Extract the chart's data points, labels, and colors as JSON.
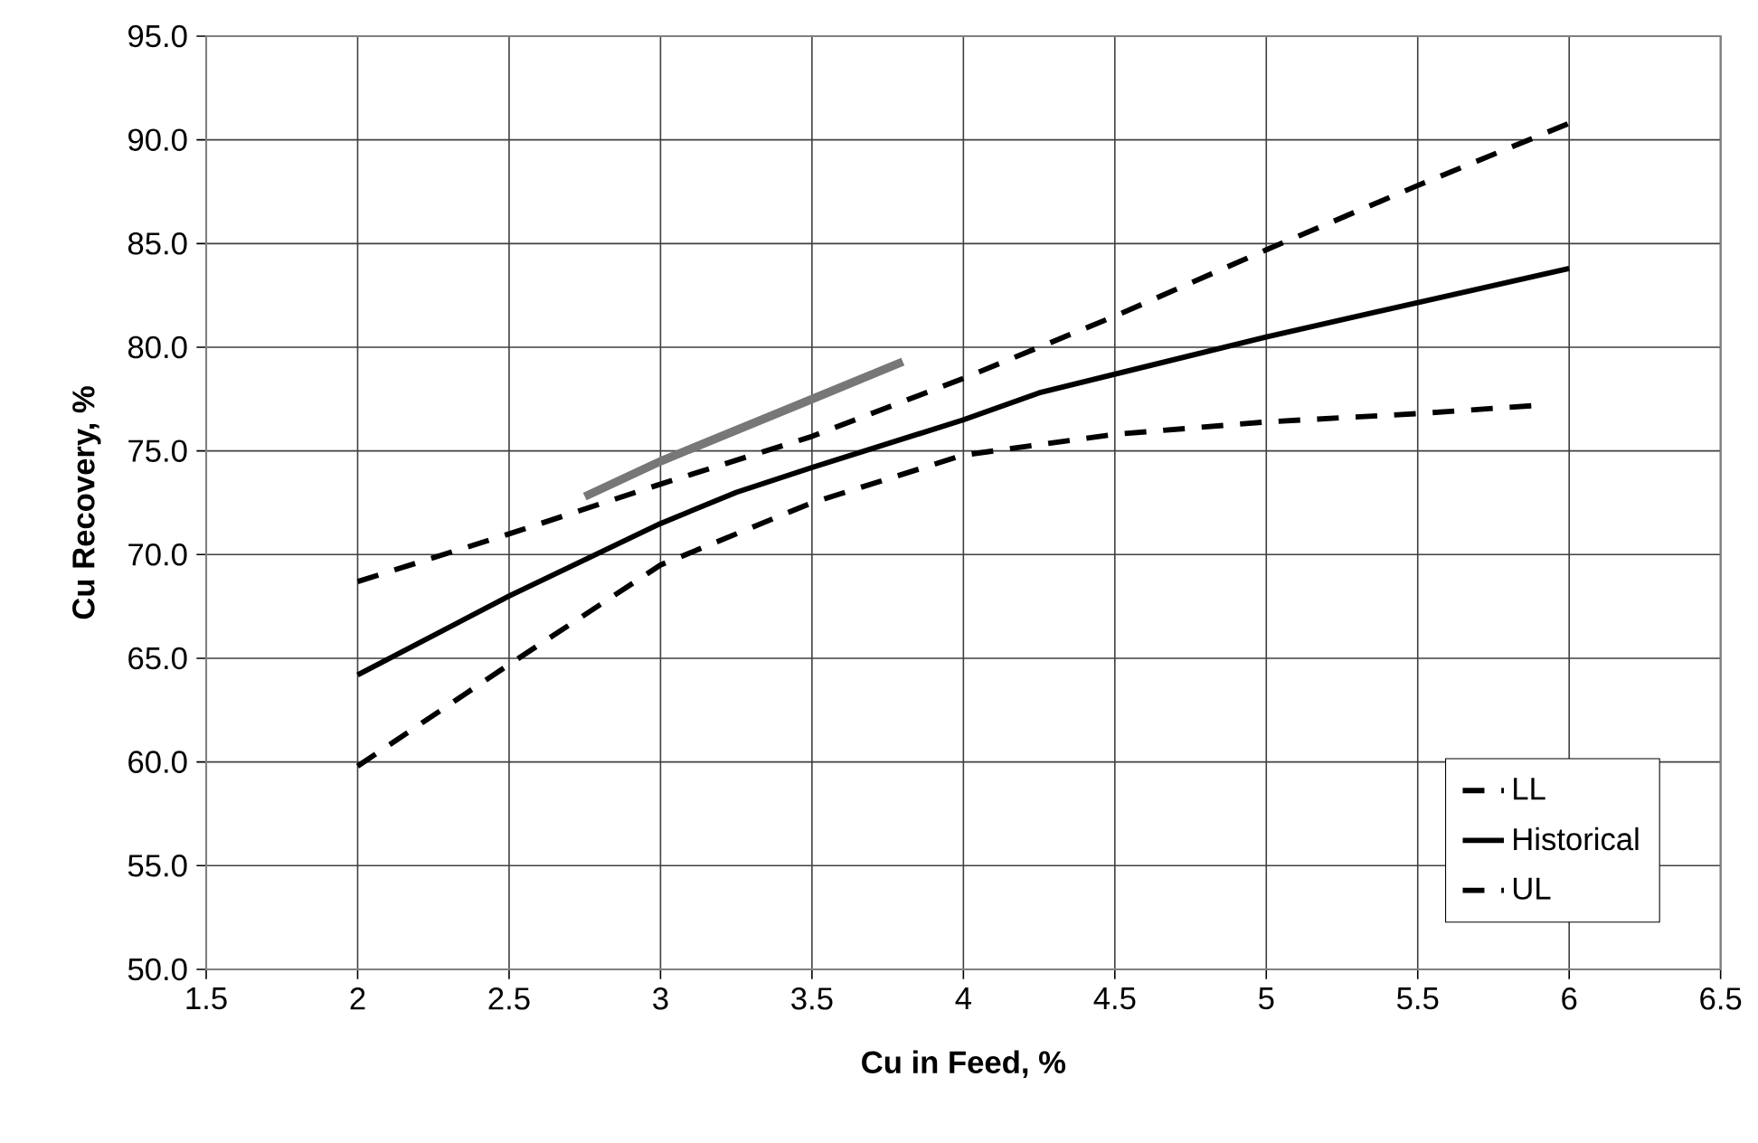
{
  "chart_data": {
    "type": "line",
    "xlabel": "Cu in Feed, %",
    "ylabel": "Cu Recovery, %",
    "xlim": [
      1.5,
      6.5
    ],
    "xticks": [
      1.5,
      2,
      2.5,
      3,
      3.5,
      4,
      4.5,
      5,
      5.5,
      6,
      6.5
    ],
    "ylim": [
      50,
      95
    ],
    "yticks": [
      {
        "value": 50,
        "label": "50.0"
      },
      {
        "value": 55,
        "label": "55.0"
      },
      {
        "value": 60,
        "label": "60.0"
      },
      {
        "value": 65,
        "label": "65.0"
      },
      {
        "value": 70,
        "label": "70.0"
      },
      {
        "value": 75,
        "label": "75.0"
      },
      {
        "value": 80,
        "label": "80.0"
      },
      {
        "value": 85,
        "label": "85.0"
      },
      {
        "value": 90,
        "label": "90.0"
      },
      {
        "value": 95,
        "label": "95.0"
      }
    ],
    "grid": true,
    "legend": "bottom right",
    "series": [
      {
        "name": "LL",
        "color": "#000000",
        "line_style": "dashed",
        "x": [
          2,
          2.5,
          3,
          3.5,
          4,
          4.5,
          5,
          5.5,
          5.9
        ],
        "values": [
          59.8,
          64.7,
          69.5,
          72.5,
          74.8,
          75.8,
          76.4,
          76.8,
          77.2
        ]
      },
      {
        "name": "Historical",
        "color": "#000000",
        "line_style": "solid",
        "x": [
          2,
          2.5,
          3,
          3.25,
          3.5,
          4,
          4.25,
          5,
          6
        ],
        "values": [
          64.2,
          68.0,
          71.5,
          73.0,
          74.2,
          76.5,
          77.8,
          80.5,
          83.8
        ]
      },
      {
        "name": "UL",
        "color": "#000000",
        "line_style": "dashed",
        "x": [
          2,
          2.5,
          3,
          3.5,
          4,
          4.5,
          5,
          5.5,
          6
        ],
        "values": [
          68.7,
          71.0,
          73.4,
          75.7,
          78.5,
          81.5,
          84.7,
          87.8,
          90.8
        ]
      },
      {
        "color": "#777777",
        "line_style": "solid",
        "x": [
          2.75,
          3,
          3.5,
          3.8
        ],
        "values": [
          72.8,
          74.5,
          77.5,
          79.3
        ]
      }
    ]
  }
}
